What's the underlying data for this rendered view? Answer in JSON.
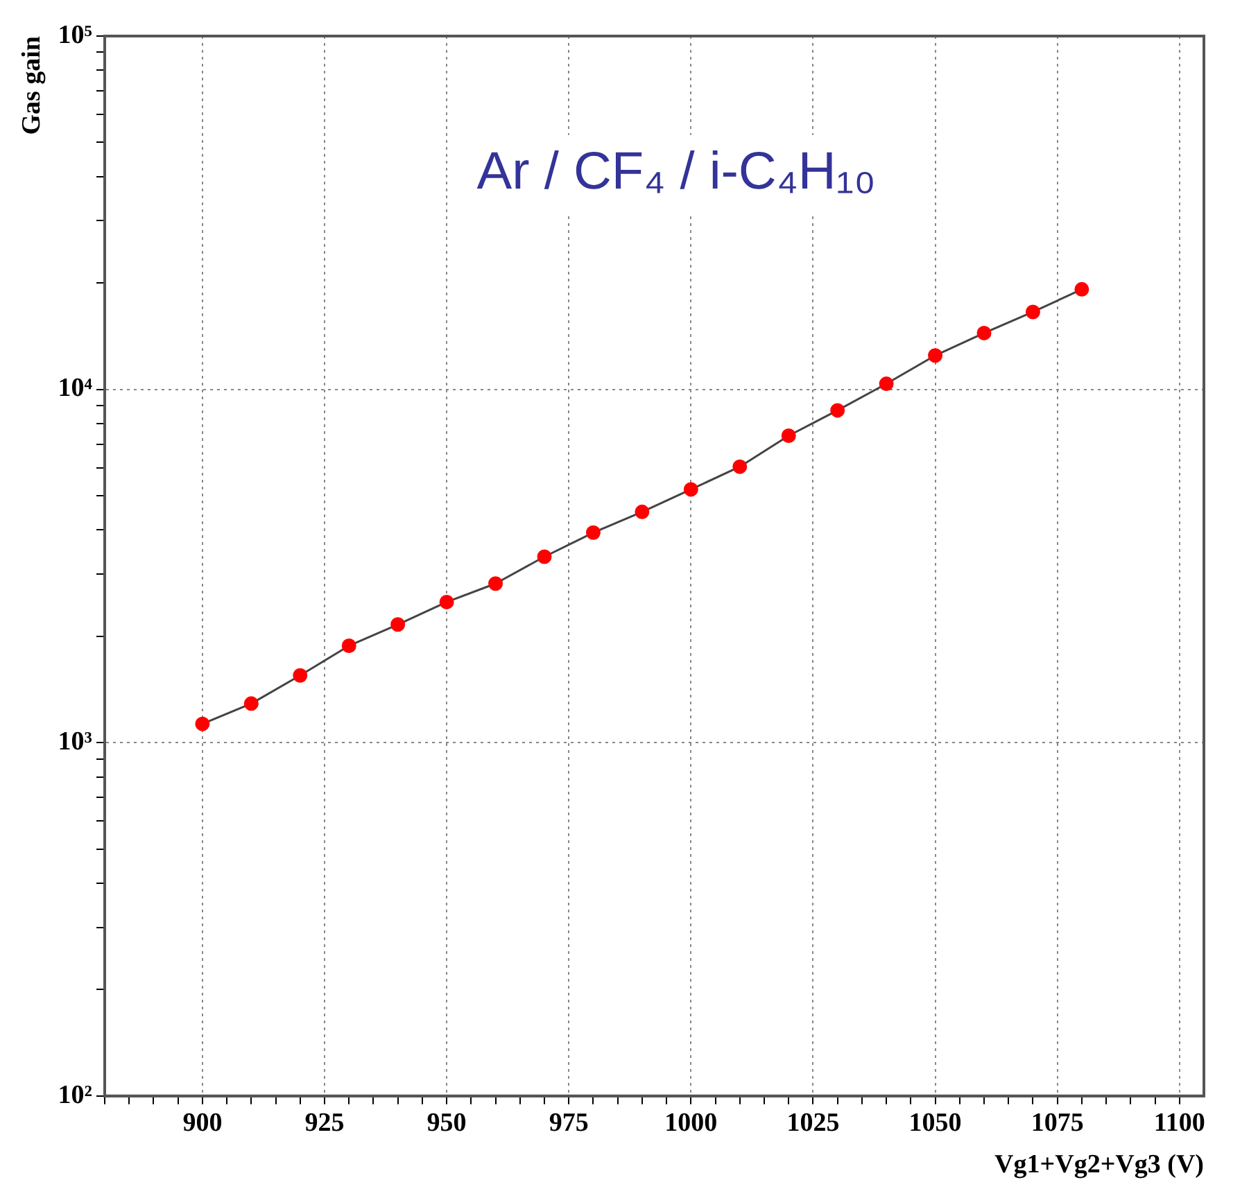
{
  "chart_data": {
    "type": "line",
    "xlabel": "Vg1+Vg2+Vg3 (V)",
    "ylabel": "Gas gain",
    "annotations": [
      "Ar / CF₄ / i-C₄H₁₀"
    ],
    "x": [
      900,
      910,
      920,
      930,
      940,
      950,
      960,
      970,
      980,
      990,
      1000,
      1010,
      1020,
      1030,
      1040,
      1050,
      1060,
      1070,
      1080
    ],
    "series": [
      {
        "color": "#ff0000",
        "values": [
          1130,
          1290,
          1550,
          1880,
          2160,
          2500,
          2820,
          3360,
          3930,
          4500,
          5210,
          6040,
          7390,
          8720,
          10370,
          12470,
          14430,
          16560,
          19190
        ]
      }
    ],
    "xlim": [
      880,
      1105
    ],
    "xticks": [
      {
        "value": 880,
        "label": null
      },
      {
        "value": 885,
        "label": null
      },
      {
        "value": 890,
        "label": null
      },
      {
        "value": 895,
        "label": null
      },
      900,
      {
        "value": 905,
        "label": null
      },
      {
        "value": 910,
        "label": null
      },
      {
        "value": 915,
        "label": null
      },
      {
        "value": 920,
        "label": null
      },
      925,
      {
        "value": 930,
        "label": null
      },
      {
        "value": 935,
        "label": null
      },
      {
        "value": 940,
        "label": null
      },
      {
        "value": 945,
        "label": null
      },
      950,
      {
        "value": 955,
        "label": null
      },
      {
        "value": 960,
        "label": null
      },
      {
        "value": 965,
        "label": null
      },
      {
        "value": 970,
        "label": null
      },
      975,
      {
        "value": 980,
        "label": null
      },
      {
        "value": 985,
        "label": null
      },
      {
        "value": 990,
        "label": null
      },
      {
        "value": 995,
        "label": null
      },
      1000,
      {
        "value": 1005,
        "label": null
      },
      {
        "value": 1010,
        "label": null
      },
      {
        "value": 1015,
        "label": null
      },
      {
        "value": 1020,
        "label": null
      },
      1025,
      {
        "value": 1030,
        "label": null
      },
      {
        "value": 1035,
        "label": null
      },
      {
        "value": 1040,
        "label": null
      },
      {
        "value": 1045,
        "label": null
      },
      1050,
      {
        "value": 1055,
        "label": null
      },
      {
        "value": 1060,
        "label": null
      },
      {
        "value": 1065,
        "label": null
      },
      {
        "value": 1070,
        "label": null
      },
      1075,
      {
        "value": 1080,
        "label": null
      },
      {
        "value": 1085,
        "label": null
      },
      {
        "value": 1090,
        "label": null
      },
      {
        "value": 1095,
        "label": null
      },
      1100
    ],
    "ylim": [
      100,
      100000
    ],
    "yticks": [
      {
        "value": 100,
        "label": "10²"
      },
      {
        "value": 200,
        "label": null
      },
      {
        "value": 300,
        "label": null
      },
      {
        "value": 400,
        "label": null
      },
      {
        "value": 500,
        "label": null
      },
      {
        "value": 600,
        "label": null
      },
      {
        "value": 700,
        "label": null
      },
      {
        "value": 800,
        "label": null
      },
      {
        "value": 900,
        "label": null
      },
      {
        "value": 1000,
        "label": "10³"
      },
      {
        "value": 2000,
        "label": null
      },
      {
        "value": 3000,
        "label": null
      },
      {
        "value": 4000,
        "label": null
      },
      {
        "value": 5000,
        "label": null
      },
      {
        "value": 6000,
        "label": null
      },
      {
        "value": 7000,
        "label": null
      },
      {
        "value": 8000,
        "label": null
      },
      {
        "value": 9000,
        "label": null
      },
      {
        "value": 10000,
        "label": "10⁴"
      },
      {
        "value": 20000,
        "label": null
      },
      {
        "value": 30000,
        "label": null
      },
      {
        "value": 40000,
        "label": null
      },
      {
        "value": 50000,
        "label": null
      },
      {
        "value": 60000,
        "label": null
      },
      {
        "value": 70000,
        "label": null
      },
      {
        "value": 80000,
        "label": null
      },
      {
        "value": 90000,
        "label": null
      },
      {
        "value": 100000,
        "label": "10⁵"
      }
    ],
    "log": "y",
    "grid": true,
    "marker": "circle",
    "line_style": "solid",
    "legend": false
  }
}
